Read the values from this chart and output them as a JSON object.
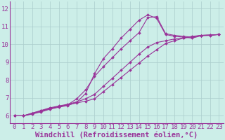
{
  "background_color": "#cceee8",
  "grid_color": "#aacccc",
  "line_color": "#993399",
  "marker_color": "#993399",
  "xlabel": "Windchill (Refroidissement éolien,°C)",
  "ylabel_ticks": [
    6,
    7,
    8,
    9,
    10,
    11,
    12
  ],
  "xlim": [
    -0.5,
    23.5
  ],
  "ylim": [
    5.6,
    12.4
  ],
  "series": [
    {
      "x": [
        0,
        1,
        2,
        3,
        4,
        5,
        6,
        7,
        8,
        9,
        10,
        11,
        12,
        13,
        14,
        15,
        16,
        17,
        18,
        19,
        20,
        21,
        22,
        23
      ],
      "y": [
        6.0,
        6.0,
        6.15,
        6.28,
        6.42,
        6.52,
        6.62,
        6.72,
        6.82,
        6.95,
        7.35,
        7.75,
        8.15,
        8.55,
        8.95,
        9.35,
        9.7,
        10.05,
        10.2,
        10.35,
        10.45,
        10.5,
        10.52,
        10.55
      ],
      "has_markers": true
    },
    {
      "x": [
        0,
        1,
        2,
        3,
        4,
        5,
        6,
        7,
        8,
        9,
        10,
        11,
        12,
        13,
        14,
        15,
        16,
        17,
        18,
        19,
        20,
        21,
        22,
        23
      ],
      "y": [
        6.0,
        6.0,
        6.15,
        6.3,
        6.45,
        6.55,
        6.65,
        6.78,
        6.95,
        7.2,
        7.65,
        8.1,
        8.55,
        9.0,
        9.45,
        9.85,
        10.1,
        10.2,
        10.3,
        10.35,
        10.42,
        10.5,
        10.52,
        10.55
      ],
      "has_markers": true
    },
    {
      "x": [
        0,
        1,
        2,
        3,
        4,
        5,
        6,
        7,
        8,
        9,
        10,
        11,
        12,
        13,
        14,
        15,
        16,
        17,
        18,
        19,
        20,
        21,
        22,
        23
      ],
      "y": [
        6.0,
        6.0,
        6.12,
        6.25,
        6.4,
        6.52,
        6.62,
        6.95,
        7.45,
        8.2,
        8.75,
        9.25,
        9.75,
        10.2,
        10.65,
        11.5,
        11.55,
        10.6,
        10.5,
        10.45,
        10.4,
        10.5,
        10.52,
        10.55
      ],
      "has_markers": true
    },
    {
      "x": [
        0,
        1,
        2,
        3,
        4,
        5,
        6,
        7,
        8,
        9,
        10,
        11,
        12,
        13,
        14,
        15,
        16,
        17,
        18,
        19,
        20,
        21,
        22,
        23
      ],
      "y": [
        6.0,
        6.0,
        6.1,
        6.22,
        6.37,
        6.48,
        6.58,
        6.75,
        7.25,
        8.35,
        9.2,
        9.75,
        10.35,
        10.85,
        11.35,
        11.65,
        11.45,
        10.55,
        10.45,
        10.4,
        10.35,
        10.48,
        10.5,
        10.55
      ],
      "has_markers": true
    }
  ],
  "tick_fontsize": 6.5,
  "xlabel_fontsize": 7.5
}
